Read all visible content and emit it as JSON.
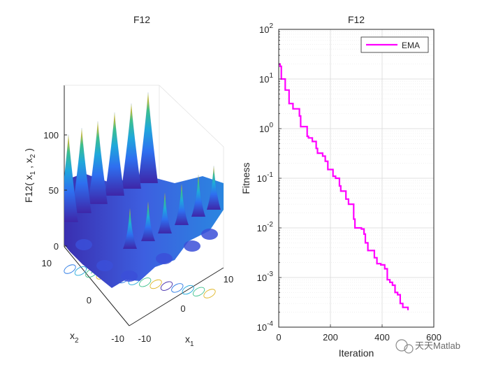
{
  "watermark": "天天Matlab",
  "colors": {
    "ema_line": "#ff00ff",
    "axes": "#262626",
    "grid": "#dcdcdc",
    "surface_low": "#3e26a8",
    "surface_mid": "#1fa8db",
    "surface_high": "#f9fb0e"
  },
  "chart_data": [
    {
      "type": "surface3d",
      "title": "F12",
      "xlabel": "x",
      "xlabel_sub": "1",
      "ylabel": "x",
      "ylabel_sub": "2",
      "zlabel": "F12( x 1 , x 2 )",
      "zlabel_parts": [
        "F12( x",
        "1",
        " , x",
        "2",
        " )"
      ],
      "xlim": [
        -10,
        10
      ],
      "ylim": [
        -10,
        10
      ],
      "zlim": [
        0,
        140
      ],
      "x_ticks": [
        "-10",
        "0",
        "10"
      ],
      "y_ticks": [
        "-10",
        "0",
        "10"
      ],
      "z_ticks": [
        "0",
        "50",
        "100"
      ],
      "peak_heights": [
        138,
        128,
        120,
        112,
        106,
        100,
        72,
        64,
        56,
        48,
        40,
        34
      ],
      "contour_projection": true
    },
    {
      "type": "line",
      "title": "F12",
      "xlabel": "Iteration",
      "ylabel": "Fitness",
      "yscale": "log",
      "xlim": [
        0,
        600
      ],
      "ylim": [
        0.0001,
        100
      ],
      "x_ticks": [
        "0",
        "200",
        "400",
        "600"
      ],
      "y_ticks": [
        {
          "base": "10",
          "exp": "-4"
        },
        {
          "base": "10",
          "exp": "-3"
        },
        {
          "base": "10",
          "exp": "-2"
        },
        {
          "base": "10",
          "exp": "-1"
        },
        {
          "base": "10",
          "exp": "0"
        },
        {
          "base": "10",
          "exp": "1"
        },
        {
          "base": "10",
          "exp": "2"
        }
      ],
      "legend": {
        "position": "top-right",
        "entries": [
          "EMA"
        ]
      },
      "series": [
        {
          "name": "EMA",
          "x": [
            1,
            5,
            10,
            20,
            25,
            40,
            50,
            55,
            70,
            80,
            85,
            100,
            110,
            115,
            130,
            145,
            150,
            160,
            170,
            180,
            190,
            200,
            210,
            220,
            235,
            240,
            250,
            260,
            270,
            280,
            290,
            295,
            300,
            320,
            330,
            335,
            345,
            350,
            370,
            380,
            395,
            410,
            420,
            430,
            440,
            450,
            460,
            470,
            480,
            490,
            500
          ],
          "y": [
            20,
            18,
            10,
            10,
            6,
            3.2,
            3.2,
            2.5,
            2.5,
            1.8,
            1.1,
            1.1,
            0.7,
            0.65,
            0.55,
            0.4,
            0.32,
            0.32,
            0.28,
            0.22,
            0.15,
            0.15,
            0.11,
            0.1,
            0.07,
            0.055,
            0.055,
            0.038,
            0.03,
            0.03,
            0.015,
            0.01,
            0.01,
            0.0095,
            0.0075,
            0.005,
            0.0035,
            0.0035,
            0.0025,
            0.0019,
            0.0018,
            0.0015,
            0.0009,
            0.0008,
            0.0007,
            0.0005,
            0.00045,
            0.0003,
            0.00025,
            0.00025,
            0.00022
          ]
        }
      ]
    }
  ]
}
